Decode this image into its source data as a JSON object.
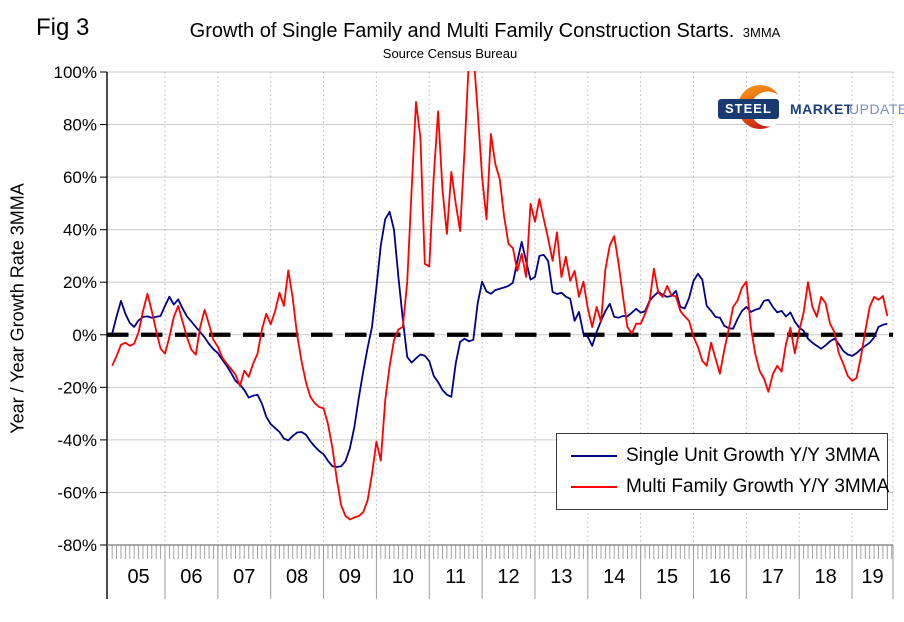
{
  "figure_label": "Fig 3",
  "title": "Growth of Single Family and Multi Family Construction Starts.",
  "title_suffix": "3MMA",
  "subtitle": "Source Census Bureau",
  "y_axis_title": "Year / Year Growth Rate 3MMA",
  "logo": {
    "steel": "STEEL",
    "market": "MARKET",
    "update": "UPDATE"
  },
  "legend": [
    {
      "label": "Single Unit Growth Y/Y 3MMA",
      "color": "#00008b"
    },
    {
      "label": "Multi Family Growth Y/Y 3MMA",
      "color": "#ff0000"
    }
  ],
  "colors": {
    "single": "#00008b",
    "multi": "#ff0000",
    "gridline": "#c9c9c9",
    "year_gridline": "#b5b5b5",
    "axis": "#000000",
    "bottom_axis": "#777777",
    "tick_comb": "#9a9a9a",
    "zero_line": "#000000"
  },
  "chart_data": {
    "type": "line",
    "title": "Growth of Single Family and Multi Family Construction Starts. 3MMA",
    "subtitle": "Source Census Bureau",
    "ylabel": "Year / Year Growth Rate 3MMA",
    "ylim": [
      -80,
      100
    ],
    "grid": true,
    "legend_position": "lower-right",
    "zero_line": "black dashed",
    "frequency": "monthly",
    "start_month": "2005-01",
    "end_month": "2019-09",
    "x_tick_labels": [
      "05",
      "06",
      "07",
      "08",
      "09",
      "10",
      "11",
      "12",
      "13",
      "14",
      "15",
      "16",
      "17",
      "18",
      "19"
    ],
    "y_tick_values": [
      100,
      80,
      60,
      40,
      20,
      0,
      -20,
      -40,
      -60,
      -80
    ],
    "y_tick_labels": [
      "100%",
      "80%",
      "60%",
      "40%",
      "20%",
      "0%",
      "-20%",
      "-40%",
      "-60%",
      "-80%"
    ],
    "series": [
      {
        "name": "Single Unit Growth Y/Y 3MMA",
        "color": "#00008b",
        "values": [
          0.5,
          7,
          12.9,
          8,
          4.5,
          3,
          5.5,
          6.8,
          7,
          6.5,
          6.8,
          7.2,
          11,
          14.5,
          11.5,
          13.5,
          10,
          7,
          5,
          3,
          1,
          -1,
          -3.5,
          -5.5,
          -7,
          -9.5,
          -11.8,
          -14.5,
          -17.5,
          -19,
          -21,
          -23.9,
          -23.2,
          -22.8,
          -26.2,
          -31.2,
          -34,
          -35.5,
          -37,
          -39.5,
          -40.2,
          -38.5,
          -37.2,
          -37,
          -38,
          -40.5,
          -42.5,
          -44.2,
          -45.5,
          -48,
          -50,
          -50.3,
          -50,
          -48,
          -43,
          -35,
          -24,
          -14,
          -5,
          3,
          18,
          34,
          44,
          46.8,
          40,
          22,
          6,
          -8.4,
          -10.6,
          -9,
          -7.5,
          -8,
          -10,
          -15.6,
          -18,
          -21,
          -22.8,
          -23.6,
          -11,
          -2.7,
          -1.5,
          -2.5,
          -1.9,
          12,
          20.2,
          16.5,
          15.6,
          17,
          17.5,
          18,
          18.6,
          19.8,
          28,
          35.4,
          28,
          21,
          22,
          30,
          30.4,
          28,
          16.3,
          15.5,
          16,
          14.5,
          13.7,
          5.3,
          8.7,
          0.4,
          -0.8,
          -4.2,
          1,
          5.3,
          9,
          11.8,
          6.8,
          6.5,
          7.2,
          7,
          8.4,
          9.9,
          8.4,
          9,
          12.9,
          14.8,
          16.3,
          15.2,
          14.4,
          14.8,
          16.7,
          10.6,
          10,
          14,
          20.5,
          23.2,
          21,
          11,
          9.1,
          6.8,
          6.5,
          3.4,
          2.5,
          2.3,
          6,
          9.1,
          10.6,
          8.7,
          9.5,
          10,
          12.9,
          13.3,
          10.6,
          8.5,
          9.1,
          7,
          8.5,
          5,
          2.7,
          1.5,
          -1.5,
          -3,
          -4.2,
          -5.3,
          -4,
          -2.5,
          -1.5,
          -3.5,
          -6.1,
          -7.5,
          -8,
          -7,
          -5.5,
          -4.2,
          -3,
          -1,
          3,
          3.8,
          4.2
        ]
      },
      {
        "name": "Multi Family Growth Y/Y 3MMA",
        "color": "#ff0000",
        "values": [
          -11.8,
          -8,
          -3.8,
          -3,
          -4.2,
          -3.4,
          1,
          9,
          15.6,
          9,
          1.5,
          -5.3,
          -7.2,
          -0.8,
          6.8,
          11,
          5,
          -1,
          -5.7,
          -7.6,
          3,
          9.5,
          4,
          -1.9,
          -4.6,
          -8.7,
          -11,
          -13,
          -15.2,
          -19.4,
          -13.7,
          -16,
          -11,
          -7.2,
          2,
          8,
          4,
          9,
          16,
          11,
          24.5,
          14,
          0,
          -10,
          -18,
          -23.6,
          -26,
          -27.5,
          -28,
          -34,
          -43,
          -55,
          -65,
          -69,
          -70.3,
          -69.5,
          -69,
          -67.5,
          -63,
          -53,
          -40.7,
          -47.9,
          -25,
          -12,
          -2,
          2,
          3,
          20,
          55,
          88.6,
          75,
          27,
          26,
          60,
          85,
          55,
          38.4,
          62,
          50,
          39.5,
          70,
          105,
          108,
          85,
          60,
          44,
          76.4,
          65,
          59.3,
          45,
          34.6,
          33,
          24.3,
          30.8,
          22,
          49.8,
          43,
          51.7,
          44,
          36.5,
          28.1,
          39,
          22,
          29.7,
          20.5,
          24.3,
          14.4,
          20.2,
          10,
          3,
          10.6,
          4.9,
          25,
          34,
          37.5,
          27,
          14.4,
          3,
          0.4,
          4.2,
          4.2,
          8,
          12.5,
          25.1,
          16,
          14.4,
          18.6,
          15,
          14.6,
          9.1,
          7,
          5.3,
          -0.8,
          -4.6,
          -9.9,
          -11.8,
          -3,
          -9,
          -14.8,
          -5.7,
          2,
          10.6,
          13,
          18,
          20.2,
          3,
          -7.2,
          -13.7,
          -16.7,
          -21.7,
          -15,
          -11.8,
          -14,
          -3.4,
          2.7,
          -7,
          1.5,
          8.4,
          20,
          10.6,
          6.8,
          14.4,
          12,
          4.2,
          1,
          -7,
          -11,
          -15.6,
          -17.5,
          -16.5,
          -8.4,
          1.5,
          10.6,
          14.4,
          13.3,
          14.8,
          7.2
        ]
      }
    ]
  }
}
